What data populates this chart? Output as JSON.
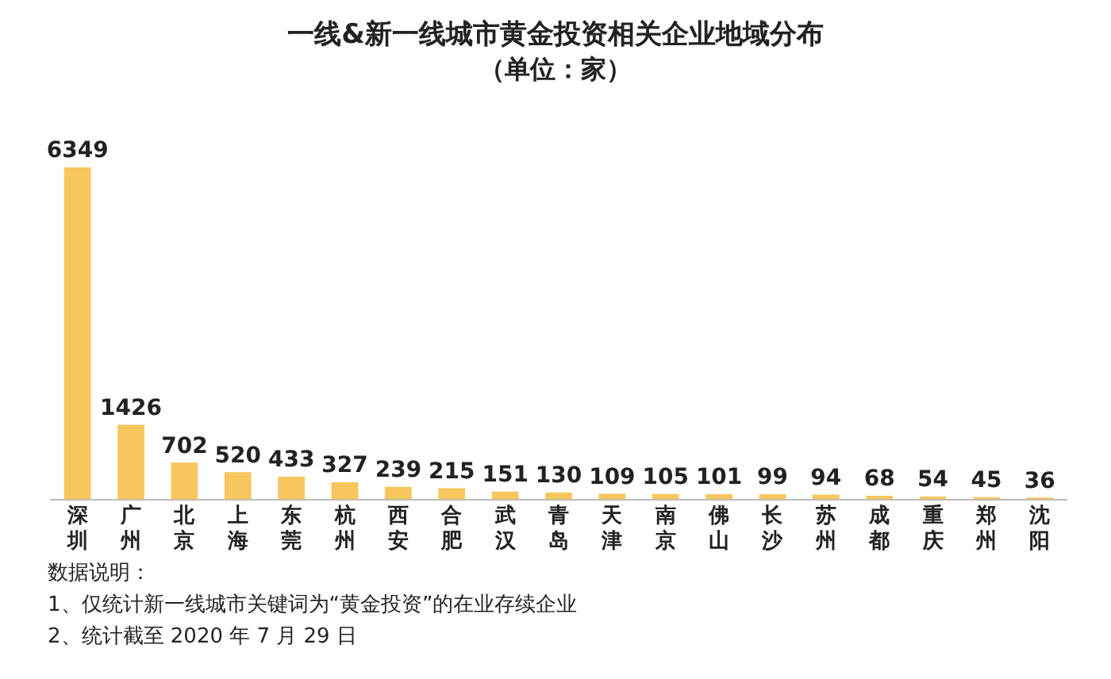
{
  "chart_data": {
    "type": "bar",
    "title": "一线&新一线城市黄金投资相关企业地域分布",
    "subtitle": "（单位：家）",
    "categories": [
      "深圳",
      "广州",
      "北京",
      "上海",
      "东莞",
      "杭州",
      "西安",
      "合肥",
      "武汉",
      "青岛",
      "天津",
      "南京",
      "佛山",
      "长沙",
      "苏州",
      "成都",
      "重庆",
      "郑州",
      "沈阳"
    ],
    "values": [
      6349,
      1426,
      702,
      520,
      433,
      327,
      239,
      215,
      151,
      130,
      109,
      105,
      101,
      99,
      94,
      68,
      54,
      45,
      36
    ],
    "color": "#f7c65c",
    "data_labels": true,
    "grid": false,
    "legend": false,
    "annotations": [
      "数据说明：",
      "1、仅统计新一线城市关键词为“黄金投资”的在业存续企业",
      "2、统计截至 2020 年 7 月 29 日"
    ]
  }
}
